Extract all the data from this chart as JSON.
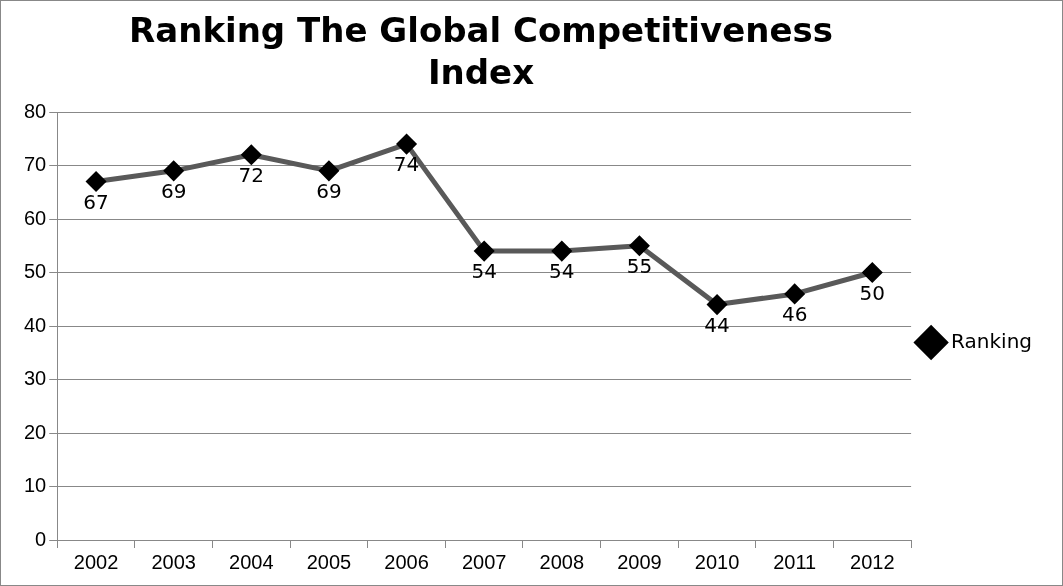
{
  "chart_data": {
    "type": "line",
    "title": "Ranking The Global Competitiveness Index",
    "categories": [
      "2002",
      "2003",
      "2004",
      "2005",
      "2006",
      "2007",
      "2008",
      "2009",
      "2010",
      "2011",
      "2012"
    ],
    "series": [
      {
        "name": "Ranking",
        "color": "#595959",
        "values": [
          67,
          69,
          72,
          69,
          74,
          54,
          54,
          55,
          44,
          46,
          50
        ]
      }
    ],
    "ylim": [
      0,
      80
    ],
    "yticks": [
      0,
      10,
      20,
      30,
      40,
      50,
      60,
      70,
      80
    ],
    "grid": "y",
    "legend": "right",
    "marker": "diamond",
    "line_style": "solid",
    "data_labels": true
  }
}
